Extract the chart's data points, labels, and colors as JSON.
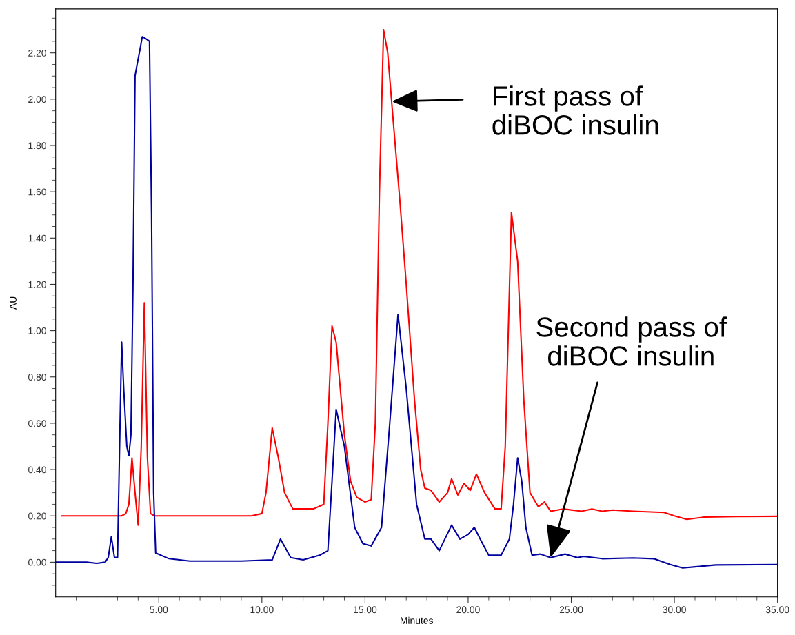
{
  "chart_data": {
    "type": "line",
    "xlabel": "Minutes",
    "ylabel": "AU",
    "xlim": [
      0,
      35
    ],
    "ylim": [
      -0.15,
      2.39
    ],
    "xticks": [
      {
        "value": 1,
        "label": null
      },
      {
        "value": 2,
        "label": null
      },
      {
        "value": 3,
        "label": null
      },
      {
        "value": 4,
        "label": null
      },
      {
        "value": 5,
        "label": "5.00"
      },
      {
        "value": 6,
        "label": null
      },
      {
        "value": 7,
        "label": null
      },
      {
        "value": 8,
        "label": null
      },
      {
        "value": 9,
        "label": null
      },
      {
        "value": 10,
        "label": "10.00"
      },
      {
        "value": 11,
        "label": null
      },
      {
        "value": 12,
        "label": null
      },
      {
        "value": 13,
        "label": null
      },
      {
        "value": 14,
        "label": null
      },
      {
        "value": 15,
        "label": "15.00"
      },
      {
        "value": 16,
        "label": null
      },
      {
        "value": 17,
        "label": null
      },
      {
        "value": 18,
        "label": null
      },
      {
        "value": 19,
        "label": null
      },
      {
        "value": 20,
        "label": "20.00"
      },
      {
        "value": 21,
        "label": null
      },
      {
        "value": 22,
        "label": null
      },
      {
        "value": 23,
        "label": null
      },
      {
        "value": 24,
        "label": null
      },
      {
        "value": 25,
        "label": "25.00"
      },
      {
        "value": 26,
        "label": null
      },
      {
        "value": 27,
        "label": null
      },
      {
        "value": 28,
        "label": null
      },
      {
        "value": 29,
        "label": null
      },
      {
        "value": 30,
        "label": "30.00"
      },
      {
        "value": 31,
        "label": null
      },
      {
        "value": 32,
        "label": null
      },
      {
        "value": 33,
        "label": null
      },
      {
        "value": 34,
        "label": null
      },
      {
        "value": 35,
        "label": "35.00"
      }
    ],
    "yticks": [
      {
        "value": -0.1,
        "label": null
      },
      {
        "value": -0.05,
        "label": null
      },
      {
        "value": 0,
        "label": "0.00"
      },
      {
        "value": 0.05,
        "label": null
      },
      {
        "value": 0.1,
        "label": null
      },
      {
        "value": 0.15,
        "label": null
      },
      {
        "value": 0.2,
        "label": "0.20"
      },
      {
        "value": 0.25,
        "label": null
      },
      {
        "value": 0.3,
        "label": null
      },
      {
        "value": 0.35,
        "label": null
      },
      {
        "value": 0.4,
        "label": "0.40"
      },
      {
        "value": 0.45,
        "label": null
      },
      {
        "value": 0.5,
        "label": null
      },
      {
        "value": 0.55,
        "label": null
      },
      {
        "value": 0.6,
        "label": "0.60"
      },
      {
        "value": 0.65,
        "label": null
      },
      {
        "value": 0.7,
        "label": null
      },
      {
        "value": 0.75,
        "label": null
      },
      {
        "value": 0.8,
        "label": "0.80"
      },
      {
        "value": 0.85,
        "label": null
      },
      {
        "value": 0.9,
        "label": null
      },
      {
        "value": 0.95,
        "label": null
      },
      {
        "value": 1.0,
        "label": "1.00"
      },
      {
        "value": 1.05,
        "label": null
      },
      {
        "value": 1.1,
        "label": null
      },
      {
        "value": 1.15,
        "label": null
      },
      {
        "value": 1.2,
        "label": "1.20"
      },
      {
        "value": 1.25,
        "label": null
      },
      {
        "value": 1.3,
        "label": null
      },
      {
        "value": 1.35,
        "label": null
      },
      {
        "value": 1.4,
        "label": "1.40"
      },
      {
        "value": 1.45,
        "label": null
      },
      {
        "value": 1.5,
        "label": null
      },
      {
        "value": 1.55,
        "label": null
      },
      {
        "value": 1.6,
        "label": "1.60"
      },
      {
        "value": 1.65,
        "label": null
      },
      {
        "value": 1.7,
        "label": null
      },
      {
        "value": 1.75,
        "label": null
      },
      {
        "value": 1.8,
        "label": "1.80"
      },
      {
        "value": 1.85,
        "label": null
      },
      {
        "value": 1.9,
        "label": null
      },
      {
        "value": 1.95,
        "label": null
      },
      {
        "value": 2.0,
        "label": "2.00"
      },
      {
        "value": 2.05,
        "label": null
      },
      {
        "value": 2.1,
        "label": null
      },
      {
        "value": 2.15,
        "label": null
      },
      {
        "value": 2.2,
        "label": "2.20"
      },
      {
        "value": 2.25,
        "label": null
      },
      {
        "value": 2.3,
        "label": null
      },
      {
        "value": 2.35,
        "label": null
      }
    ],
    "grid": false,
    "marker": "none",
    "line_style": "solid",
    "series": [
      {
        "color": "#ff0000",
        "x": [
          0.3,
          2.5,
          3.2,
          3.4,
          3.55,
          3.7,
          3.85,
          4.0,
          4.15,
          4.3,
          4.45,
          4.6,
          4.8,
          6,
          8,
          9.5,
          10.0,
          10.2,
          10.5,
          10.8,
          11.1,
          11.5,
          12,
          12.5,
          13.0,
          13.2,
          13.4,
          13.6,
          14.0,
          14.3,
          14.6,
          15.0,
          15.3,
          15.5,
          15.7,
          15.9,
          16.1,
          16.3,
          16.7,
          17.0,
          17.4,
          17.7,
          17.9,
          18.2,
          18.6,
          19.0,
          19.2,
          19.5,
          19.8,
          20.1,
          20.4,
          20.8,
          21.3,
          21.6,
          21.8,
          22.1,
          22.4,
          22.7,
          23.0,
          23.4,
          23.7,
          24.0,
          24.6,
          25.5,
          26.0,
          26.5,
          27.0,
          28.0,
          29.5,
          30.0,
          30.6,
          31.5,
          33.0,
          35.0
        ],
        "values": [
          0.2,
          0.2,
          0.2,
          0.21,
          0.25,
          0.45,
          0.3,
          0.16,
          0.5,
          1.12,
          0.45,
          0.21,
          0.2,
          0.2,
          0.2,
          0.2,
          0.21,
          0.3,
          0.58,
          0.45,
          0.3,
          0.23,
          0.23,
          0.23,
          0.25,
          0.6,
          1.02,
          0.95,
          0.55,
          0.35,
          0.28,
          0.26,
          0.27,
          0.6,
          1.6,
          2.3,
          2.2,
          1.98,
          1.55,
          1.2,
          0.7,
          0.4,
          0.32,
          0.31,
          0.26,
          0.3,
          0.36,
          0.29,
          0.34,
          0.31,
          0.38,
          0.3,
          0.23,
          0.23,
          0.5,
          1.51,
          1.3,
          0.7,
          0.3,
          0.24,
          0.26,
          0.22,
          0.23,
          0.22,
          0.23,
          0.22,
          0.225,
          0.22,
          0.215,
          0.2,
          0.185,
          0.195,
          0.197,
          0.198
        ]
      },
      {
        "color": "#0000a0",
        "x": [
          0,
          1.5,
          2.0,
          2.4,
          2.55,
          2.7,
          2.85,
          3.0,
          3.1,
          3.2,
          3.3,
          3.45,
          3.55,
          3.65,
          3.75,
          3.85,
          3.95,
          4.1,
          4.2,
          4.4,
          4.55,
          4.65,
          4.75,
          4.85,
          5.5,
          6.5,
          9.0,
          10.5,
          10.9,
          11.4,
          12.0,
          12.8,
          13.2,
          13.4,
          13.6,
          14.0,
          14.5,
          14.9,
          15.3,
          15.8,
          16.2,
          16.6,
          17.0,
          17.5,
          17.9,
          18.2,
          18.6,
          19.2,
          19.6,
          20.0,
          20.3,
          20.7,
          21.0,
          21.6,
          22.0,
          22.2,
          22.4,
          22.6,
          22.8,
          23.1,
          23.5,
          24.0,
          24.7,
          25.3,
          25.6,
          26.5,
          28.0,
          29.0,
          29.8,
          30.4,
          31.0,
          32.0,
          35.0
        ],
        "values": [
          0.0,
          0.0,
          -0.005,
          0.0,
          0.02,
          0.11,
          0.02,
          0.02,
          0.5,
          0.95,
          0.75,
          0.5,
          0.46,
          0.55,
          1.2,
          2.1,
          2.15,
          2.22,
          2.27,
          2.26,
          2.25,
          1.5,
          0.3,
          0.04,
          0.015,
          0.005,
          0.005,
          0.01,
          0.1,
          0.02,
          0.01,
          0.03,
          0.05,
          0.35,
          0.66,
          0.5,
          0.15,
          0.08,
          0.07,
          0.15,
          0.6,
          1.07,
          0.75,
          0.25,
          0.1,
          0.1,
          0.05,
          0.16,
          0.1,
          0.12,
          0.15,
          0.08,
          0.03,
          0.03,
          0.1,
          0.25,
          0.45,
          0.35,
          0.15,
          0.03,
          0.035,
          0.02,
          0.035,
          0.02,
          0.025,
          0.015,
          0.018,
          0.015,
          -0.01,
          -0.025,
          -0.02,
          -0.012,
          -0.01
        ]
      }
    ],
    "annotations": [
      {
        "text": "First pass of\ndiBOC insulin",
        "x": 16.3,
        "y": 1.99
      },
      {
        "text": "Second pass of\ndiBOC insulin",
        "x": 24.0,
        "y": 0.02
      }
    ]
  }
}
